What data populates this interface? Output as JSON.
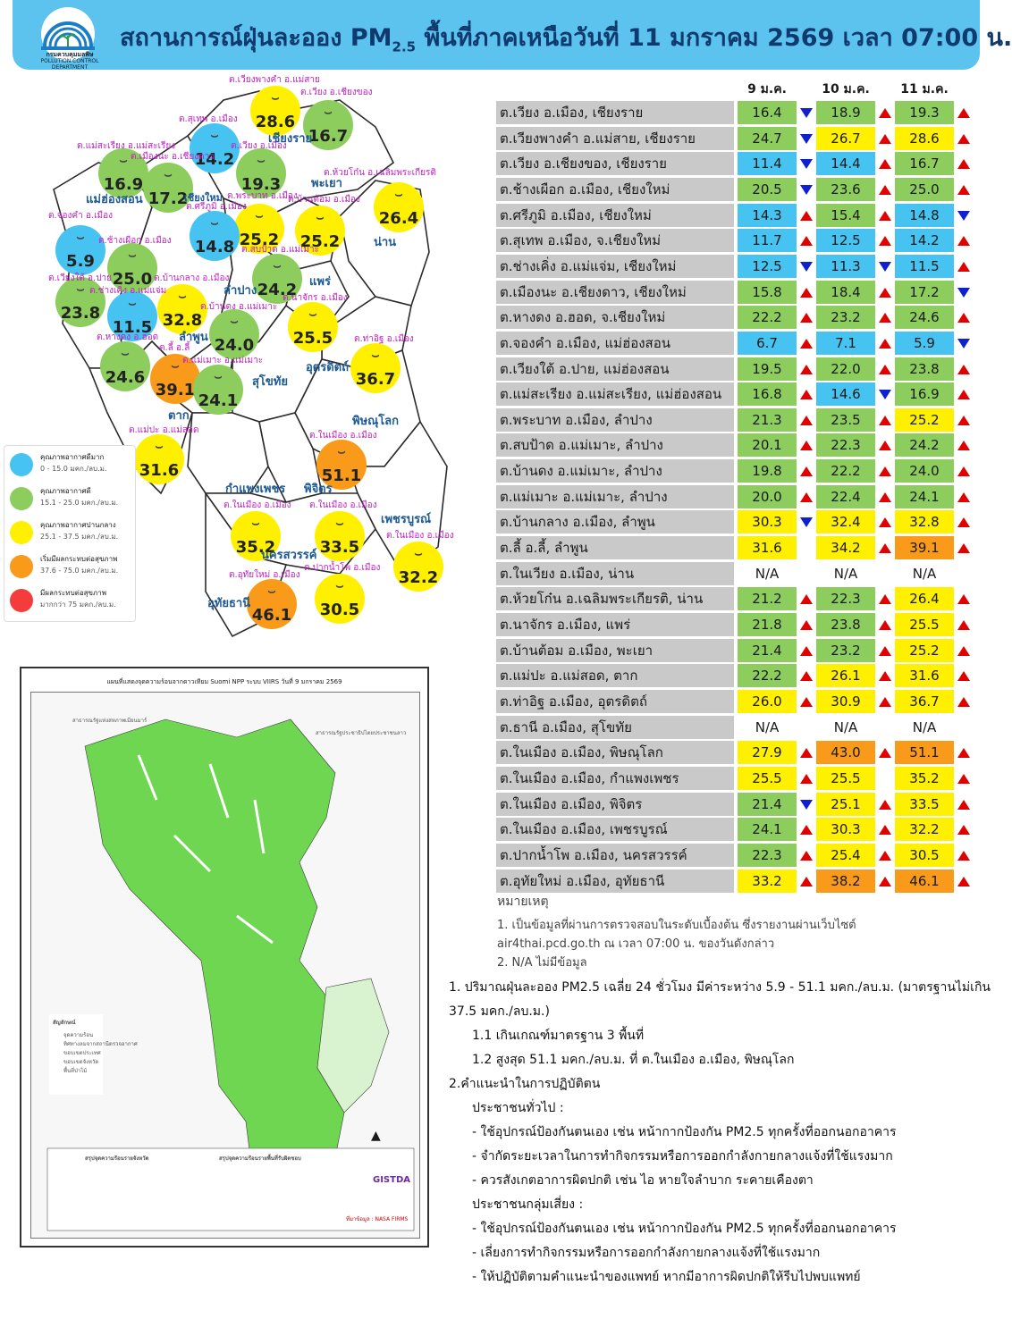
{
  "header": {
    "title_pre": "สถานการณ์ฝุ่นละออง PM",
    "title_sub": "2.5",
    "title_post": " พื้นที่ภาคเหนือวันที่ 11 มกราคม 2569 เวลา 07:00 น.",
    "logo_th": "กรมควบคุมมลพิษ",
    "logo_en": "POLLUTION CONTROL DEPARTMENT"
  },
  "colors": {
    "blue": "#46c3f0",
    "green": "#8ccd5e",
    "yellow": "#fff000",
    "orange": "#f99a1a",
    "red": "#f43c3c",
    "header": "#5cc2ee"
  },
  "map": {
    "points": [
      {
        "label": "ต.เวียงพางคำ อ.แม่สาย",
        "value": "28.6",
        "level": "yellow"
      },
      {
        "label": "ต.เวียง อ.เชียงของ",
        "value": "16.7",
        "level": "green"
      },
      {
        "label": "ต.สุเทพ อ.เมือง",
        "value": "14.2",
        "level": "blue"
      },
      {
        "label": "ต.เวียง อ.เมือง",
        "value": "19.3",
        "level": "green"
      },
      {
        "label": "ต.แม่สะเรียง อ.แม่สะเรียง",
        "value": "16.9",
        "level": "green"
      },
      {
        "label": "ต.เมืองนะ อ.เชียงดาว",
        "value": "17.2",
        "level": "green"
      },
      {
        "label": "ต.ห้วยโก๋น อ.เฉลิมพระเกียรติ",
        "value": "26.4",
        "level": "yellow"
      },
      {
        "label": "ต.พระบาท อ.เมือง",
        "value": "25.2",
        "level": "yellow"
      },
      {
        "label": "ต.บ้านต้อม อ.เมือง",
        "value": "25.2",
        "level": "yellow"
      },
      {
        "label": "ต.ศรีภูมิ อ.เมือง",
        "value": "14.8",
        "level": "blue"
      },
      {
        "label": "ต.จองคำ อ.เมือง",
        "value": "5.9",
        "level": "blue"
      },
      {
        "label": "ต.ช้างเผือก อ.เมือง",
        "value": "25.0",
        "level": "green"
      },
      {
        "label": "ต.สบป้าด อ.แม่เมาะ",
        "value": "24.2",
        "level": "green"
      },
      {
        "label": "ต.เวียงใต้ อ.ปาย",
        "value": "23.8",
        "level": "green"
      },
      {
        "label": "ต.ช่างเคิ่ง อ.แม่แจ่ม",
        "value": "11.5",
        "level": "blue"
      },
      {
        "label": "ต.บ้านกลาง อ.เมือง",
        "value": "32.8",
        "level": "yellow"
      },
      {
        "label": "ต.บ้านดง อ.แม่เมาะ",
        "value": "24.0",
        "level": "green"
      },
      {
        "label": "ต.นาจักร อ.เมือง",
        "value": "25.5",
        "level": "yellow"
      },
      {
        "label": "ต.หางดง อ.ฮอด",
        "value": "24.6",
        "level": "green"
      },
      {
        "label": "ต.ลี้ อ.ลี้",
        "value": "39.1",
        "level": "orange"
      },
      {
        "label": "ต.แม่เมาะ อ.แม่เมาะ",
        "value": "24.1",
        "level": "green"
      },
      {
        "label": "ต.ท่าอิฐ อ.เมือง",
        "value": "36.7",
        "level": "yellow"
      },
      {
        "label": "ต.แม่ปะ อ.แม่สอด",
        "value": "31.6",
        "level": "yellow"
      },
      {
        "label": "ต.ในเมือง อ.เมือง",
        "value": "51.1",
        "level": "orange"
      },
      {
        "label": "ต.ในเมือง อ.เมือง",
        "value": "35.2",
        "level": "yellow"
      },
      {
        "label": "ต.ในเมือง อ.เมือง",
        "value": "33.5",
        "level": "yellow"
      },
      {
        "label": "ต.ในเมือง อ.เมือง",
        "value": "32.2",
        "level": "yellow"
      },
      {
        "label": "ต.อุทัยใหม่ อ.เมือง",
        "value": "46.1",
        "level": "orange"
      },
      {
        "label": "ต.ปากน้ำโพ อ.เมือง",
        "value": "30.5",
        "level": "yellow"
      }
    ],
    "provinces": [
      "เชียงราย",
      "แม่ฮ่องสอน",
      "พะเยา",
      "น่าน",
      "ลำปาง",
      "แพร่",
      "ลำพูน",
      "อุตรดิตถ์",
      "สุโขทัย",
      "ตาก",
      "พิษณุโลก",
      "กำแพงเพชร",
      "พิจิตร",
      "เพชรบูรณ์",
      "นครสวรรค์",
      "อุทัยธานี",
      "เชียงใหม่"
    ],
    "legend": [
      {
        "title": "คุณภาพอากาศดีมาก",
        "range": "0 - 15.0 มคก./ลบ.ม.",
        "level": "blue"
      },
      {
        "title": "คุณภาพอากาศดี",
        "range": "15.1 - 25.0 มคก./ลบ.ม.",
        "level": "green"
      },
      {
        "title": "คุณภาพอากาศปานกลาง",
        "range": "25.1 - 37.5 มคก./ลบ.ม.",
        "level": "yellow"
      },
      {
        "title": "เริ่มมีผลกระทบต่อสุขภาพ",
        "range": "37.6 - 75.0 มคก./ลบ.ม.",
        "level": "orange"
      },
      {
        "title": "มีผลกระทบต่อสุขภาพ",
        "range": "มากกว่า 75 มคก./ลบ.ม.",
        "level": "red"
      }
    ]
  },
  "firemap": {
    "title": "แผนที่แสดงจุดความร้อนจากดาวเทียม Suomi NPP ระบบ VIIRS  วันที่ 9 มกราคม 2569",
    "myanmar": "สาธารณรัฐแห่งสหภาพเมียนมาร์",
    "laos": "สาธารณรัฐประชาธิปไตยประชาชนลาว",
    "legend_title": "สัญลักษณ์",
    "legend_items": [
      "จุดความร้อน",
      "ทิศทางลมจากสถานีตรวจอากาศ",
      "ขอบเขตประเทศ",
      "ขอบเขตจังหวัด",
      "พื้นที่ป่าไม้"
    ],
    "summary_left_title": "สรุปจุดความร้อนรายจังหวัด",
    "summary_right_title": "สรุปจุดความร้อนรายพื้นที่รับผิดชอบ",
    "gistda": "GISTDA",
    "source": "ที่มาข้อมูล : NASA FIRMS"
  },
  "table": {
    "headers": [
      "9 ม.ค.",
      "10 ม.ค.",
      "11 ม.ค."
    ],
    "rows": [
      {
        "name": "ต.เวียง อ.เมือง, เชียงราย",
        "v": [
          "16.4",
          "18.9",
          "19.3"
        ],
        "c": [
          "green",
          "green",
          "green"
        ],
        "a": [
          "down",
          "up",
          "up"
        ]
      },
      {
        "name": "ต.เวียงพางคำ อ.แม่สาย, เชียงราย",
        "v": [
          "24.7",
          "26.7",
          "28.6"
        ],
        "c": [
          "green",
          "yellow",
          "yellow"
        ],
        "a": [
          "down",
          "up",
          "up"
        ]
      },
      {
        "name": "ต.เวียง อ.เชียงของ, เชียงราย",
        "v": [
          "11.4",
          "14.4",
          "16.7"
        ],
        "c": [
          "blue",
          "blue",
          "green"
        ],
        "a": [
          "down",
          "up",
          "up"
        ]
      },
      {
        "name": "ต.ช้างเผือก อ.เมือง, เชียงใหม่",
        "v": [
          "20.5",
          "23.6",
          "25.0"
        ],
        "c": [
          "green",
          "green",
          "green"
        ],
        "a": [
          "down",
          "up",
          "up"
        ]
      },
      {
        "name": "ต.ศรีภูมิ อ.เมือง, เชียงใหม่",
        "v": [
          "14.3",
          "15.4",
          "14.8"
        ],
        "c": [
          "blue",
          "green",
          "blue"
        ],
        "a": [
          "up",
          "up",
          "down"
        ]
      },
      {
        "name": "ต.สุเทพ อ.เมือง, จ.เชียงใหม่",
        "v": [
          "11.7",
          "12.5",
          "14.2"
        ],
        "c": [
          "blue",
          "blue",
          "blue"
        ],
        "a": [
          "up",
          "up",
          "up"
        ]
      },
      {
        "name": "ต.ช่างเคิ่ง อ.แม่แจ่ม, เชียงใหม่",
        "v": [
          "12.5",
          "11.3",
          "11.5"
        ],
        "c": [
          "blue",
          "blue",
          "blue"
        ],
        "a": [
          "down",
          "down",
          "up"
        ]
      },
      {
        "name": "ต.เมืองนะ อ.เชียงดาว, เชียงใหม่",
        "v": [
          "15.8",
          "18.4",
          "17.2"
        ],
        "c": [
          "green",
          "green",
          "green"
        ],
        "a": [
          "up",
          "up",
          "down"
        ]
      },
      {
        "name": "ต.หางดง อ.ฮอด, จ.เชียงใหม่",
        "v": [
          "22.2",
          "23.2",
          "24.6"
        ],
        "c": [
          "green",
          "green",
          "green"
        ],
        "a": [
          "up",
          "up",
          "up"
        ]
      },
      {
        "name": "ต.จองคำ อ.เมือง, แม่ฮ่องสอน",
        "v": [
          "6.7",
          "7.1",
          "5.9"
        ],
        "c": [
          "blue",
          "blue",
          "blue"
        ],
        "a": [
          "up",
          "up",
          "down"
        ]
      },
      {
        "name": "ต.เวียงใต้ อ.ปาย, แม่ฮ่องสอน",
        "v": [
          "19.5",
          "22.0",
          "23.8"
        ],
        "c": [
          "green",
          "green",
          "green"
        ],
        "a": [
          "up",
          "up",
          "up"
        ]
      },
      {
        "name": "ต.แม่สะเรียง อ.แม่สะเรียง, แม่ฮ่องสอน",
        "v": [
          "16.8",
          "14.6",
          "16.9"
        ],
        "c": [
          "green",
          "blue",
          "green"
        ],
        "a": [
          "up",
          "down",
          "up"
        ]
      },
      {
        "name": "ต.พระบาท อ.เมือง, ลำปาง",
        "v": [
          "21.3",
          "23.5",
          "25.2"
        ],
        "c": [
          "green",
          "green",
          "yellow"
        ],
        "a": [
          "up",
          "up",
          "up"
        ]
      },
      {
        "name": "ต.สบป้าด อ.แม่เมาะ, ลำปาง",
        "v": [
          "20.1",
          "22.3",
          "24.2"
        ],
        "c": [
          "green",
          "green",
          "green"
        ],
        "a": [
          "up",
          "up",
          "up"
        ]
      },
      {
        "name": "ต.บ้านดง อ.แม่เมาะ, ลำปาง",
        "v": [
          "19.8",
          "22.2",
          "24.0"
        ],
        "c": [
          "green",
          "green",
          "green"
        ],
        "a": [
          "up",
          "up",
          "up"
        ]
      },
      {
        "name": "ต.แม่เมาะ อ.แม่เมาะ, ลำปาง",
        "v": [
          "20.0",
          "22.4",
          "24.1"
        ],
        "c": [
          "green",
          "green",
          "green"
        ],
        "a": [
          "up",
          "up",
          "up"
        ]
      },
      {
        "name": "ต.บ้านกลาง อ.เมือง, ลำพูน",
        "v": [
          "30.3",
          "32.4",
          "32.8"
        ],
        "c": [
          "yellow",
          "yellow",
          "yellow"
        ],
        "a": [
          "down",
          "up",
          "up"
        ]
      },
      {
        "name": "ต.ลี้ อ.ลี้, ลำพูน",
        "v": [
          "31.6",
          "34.2",
          "39.1"
        ],
        "c": [
          "yellow",
          "yellow",
          "orange"
        ],
        "a": [
          "",
          "up",
          "up"
        ]
      },
      {
        "name": "ต.ในเวียง อ.เมือง, น่าน",
        "v": [
          "N/A",
          "N/A",
          "N/A"
        ],
        "c": [
          "none",
          "none",
          "none"
        ],
        "a": [
          "",
          "",
          ""
        ]
      },
      {
        "name": "ต.ห้วยโก๋น อ.เฉลิมพระเกียรติ, น่าน",
        "v": [
          "21.2",
          "22.3",
          "26.4"
        ],
        "c": [
          "green",
          "green",
          "yellow"
        ],
        "a": [
          "up",
          "up",
          "up"
        ]
      },
      {
        "name": "ต.นาจักร อ.เมือง, แพร่",
        "v": [
          "21.8",
          "23.8",
          "25.5"
        ],
        "c": [
          "green",
          "green",
          "yellow"
        ],
        "a": [
          "up",
          "up",
          "up"
        ]
      },
      {
        "name": "ต.บ้านต้อม อ.เมือง, พะเยา",
        "v": [
          "21.4",
          "23.2",
          "25.2"
        ],
        "c": [
          "green",
          "green",
          "yellow"
        ],
        "a": [
          "up",
          "up",
          "up"
        ]
      },
      {
        "name": "ต.แม่ปะ อ.แม่สอด, ตาก",
        "v": [
          "22.2",
          "26.1",
          "31.6"
        ],
        "c": [
          "green",
          "yellow",
          "yellow"
        ],
        "a": [
          "up",
          "up",
          "up"
        ]
      },
      {
        "name": "ต.ท่าอิฐ อ.เมือง, อุตรดิตถ์",
        "v": [
          "26.0",
          "30.9",
          "36.7"
        ],
        "c": [
          "yellow",
          "yellow",
          "yellow"
        ],
        "a": [
          "up",
          "up",
          "up"
        ]
      },
      {
        "name": "ต.ธานี อ.เมือง, สุโขทัย",
        "v": [
          "N/A",
          "N/A",
          "N/A"
        ],
        "c": [
          "none",
          "none",
          "none"
        ],
        "a": [
          "",
          "",
          ""
        ]
      },
      {
        "name": "ต.ในเมือง อ.เมือง, พิษณุโลก",
        "v": [
          "27.9",
          "43.0",
          "51.1"
        ],
        "c": [
          "yellow",
          "orange",
          "orange"
        ],
        "a": [
          "up",
          "up",
          "up"
        ]
      },
      {
        "name": "ต.ในเมือง อ.เมือง, กำแพงเพชร",
        "v": [
          "25.5",
          "25.5",
          "35.2"
        ],
        "c": [
          "yellow",
          "yellow",
          "yellow"
        ],
        "a": [
          "up",
          "",
          "up"
        ]
      },
      {
        "name": "ต.ในเมือง อ.เมือง, พิจิตร",
        "v": [
          "21.4",
          "25.1",
          "33.5"
        ],
        "c": [
          "green",
          "yellow",
          "yellow"
        ],
        "a": [
          "down",
          "up",
          "up"
        ]
      },
      {
        "name": "ต.ในเมือง อ.เมือง, เพชรบูรณ์",
        "v": [
          "24.1",
          "30.3",
          "32.2"
        ],
        "c": [
          "green",
          "yellow",
          "yellow"
        ],
        "a": [
          "up",
          "up",
          "up"
        ]
      },
      {
        "name": "ต.ปากน้ำโพ อ.เมือง, นครสวรรค์",
        "v": [
          "22.3",
          "25.4",
          "30.5"
        ],
        "c": [
          "green",
          "yellow",
          "yellow"
        ],
        "a": [
          "up",
          "up",
          "up"
        ]
      },
      {
        "name": "ต.อุทัยใหม่ อ.เมือง, อุทัยธานี",
        "v": [
          "33.2",
          "38.2",
          "46.1"
        ],
        "c": [
          "yellow",
          "orange",
          "orange"
        ],
        "a": [
          "up",
          "up",
          "up"
        ]
      }
    ]
  },
  "notes": {
    "title": "หมายเหตุ",
    "n1a": "1.  เป็นข้อมูลที่ผ่านการตรวจสอบในระดับเบื้องต้น  ซึ่งรายงานผ่านเว็บไซต์",
    "n1b": "air4thai.pcd.go.th  ณ  เวลา 07:00  น.  ของวันดังกล่าว",
    "n2": "2.  N/A  ไม่มีข้อมูล"
  },
  "summary": {
    "l1": "1.  ปริมาณฝุ่นละออง PM2.5 เฉลี่ย 24 ชั่วโมง มีค่าระหว่าง 5.9 - 51.1 มคก./ลบ.ม. (มาตรฐานไม่เกิน",
    "l2": "37.5  มคก./ลบ.ม.)",
    "l3": "1.1  เกินเกณฑ์มาตรฐาน  3  พื้นที่",
    "l4": "1.2  สูงสุด  51.1  มคก./ลบ.ม.  ที่  ต.ในเมือง  อ.เมือง,  พิษณุโลก",
    "l5": "2.คำแนะนำในการปฏิบัติตน",
    "l6": "ประชาชนทั่วไป  :",
    "l7": "-  ใช้อุปกรณ์ป้องกันตนเอง  เช่น  หน้ากากป้องกัน  PM2.5  ทุกครั้งที่ออกนอกอาคาร",
    "l8": "-  จำกัดระยะเวลาในการทำกิจกรรมหรือการออกกำลังกายกลางแจ้งที่ใช้แรงมาก",
    "l9": "-  ควรสังเกตอาการผิดปกติ  เช่น  ไอ  หายใจลำบาก  ระคายเคืองตา",
    "l10": "ประชาชนกลุ่มเสี่ยง  :",
    "l11": "-  ใช้อุปกรณ์ป้องกันตนเอง  เช่น  หน้ากากป้องกัน  PM2.5  ทุกครั้งที่ออกนอกอาคาร",
    "l12": "-  เลี่ยงการทำกิจกรรมหรือการออกกำลังกายกลางแจ้งที่ใช้แรงมาก",
    "l13": "-  ให้ปฏิบัติตามคำแนะนำของแพทย์  หากมีอาการผิดปกติให้รีบไปพบแพทย์"
  }
}
